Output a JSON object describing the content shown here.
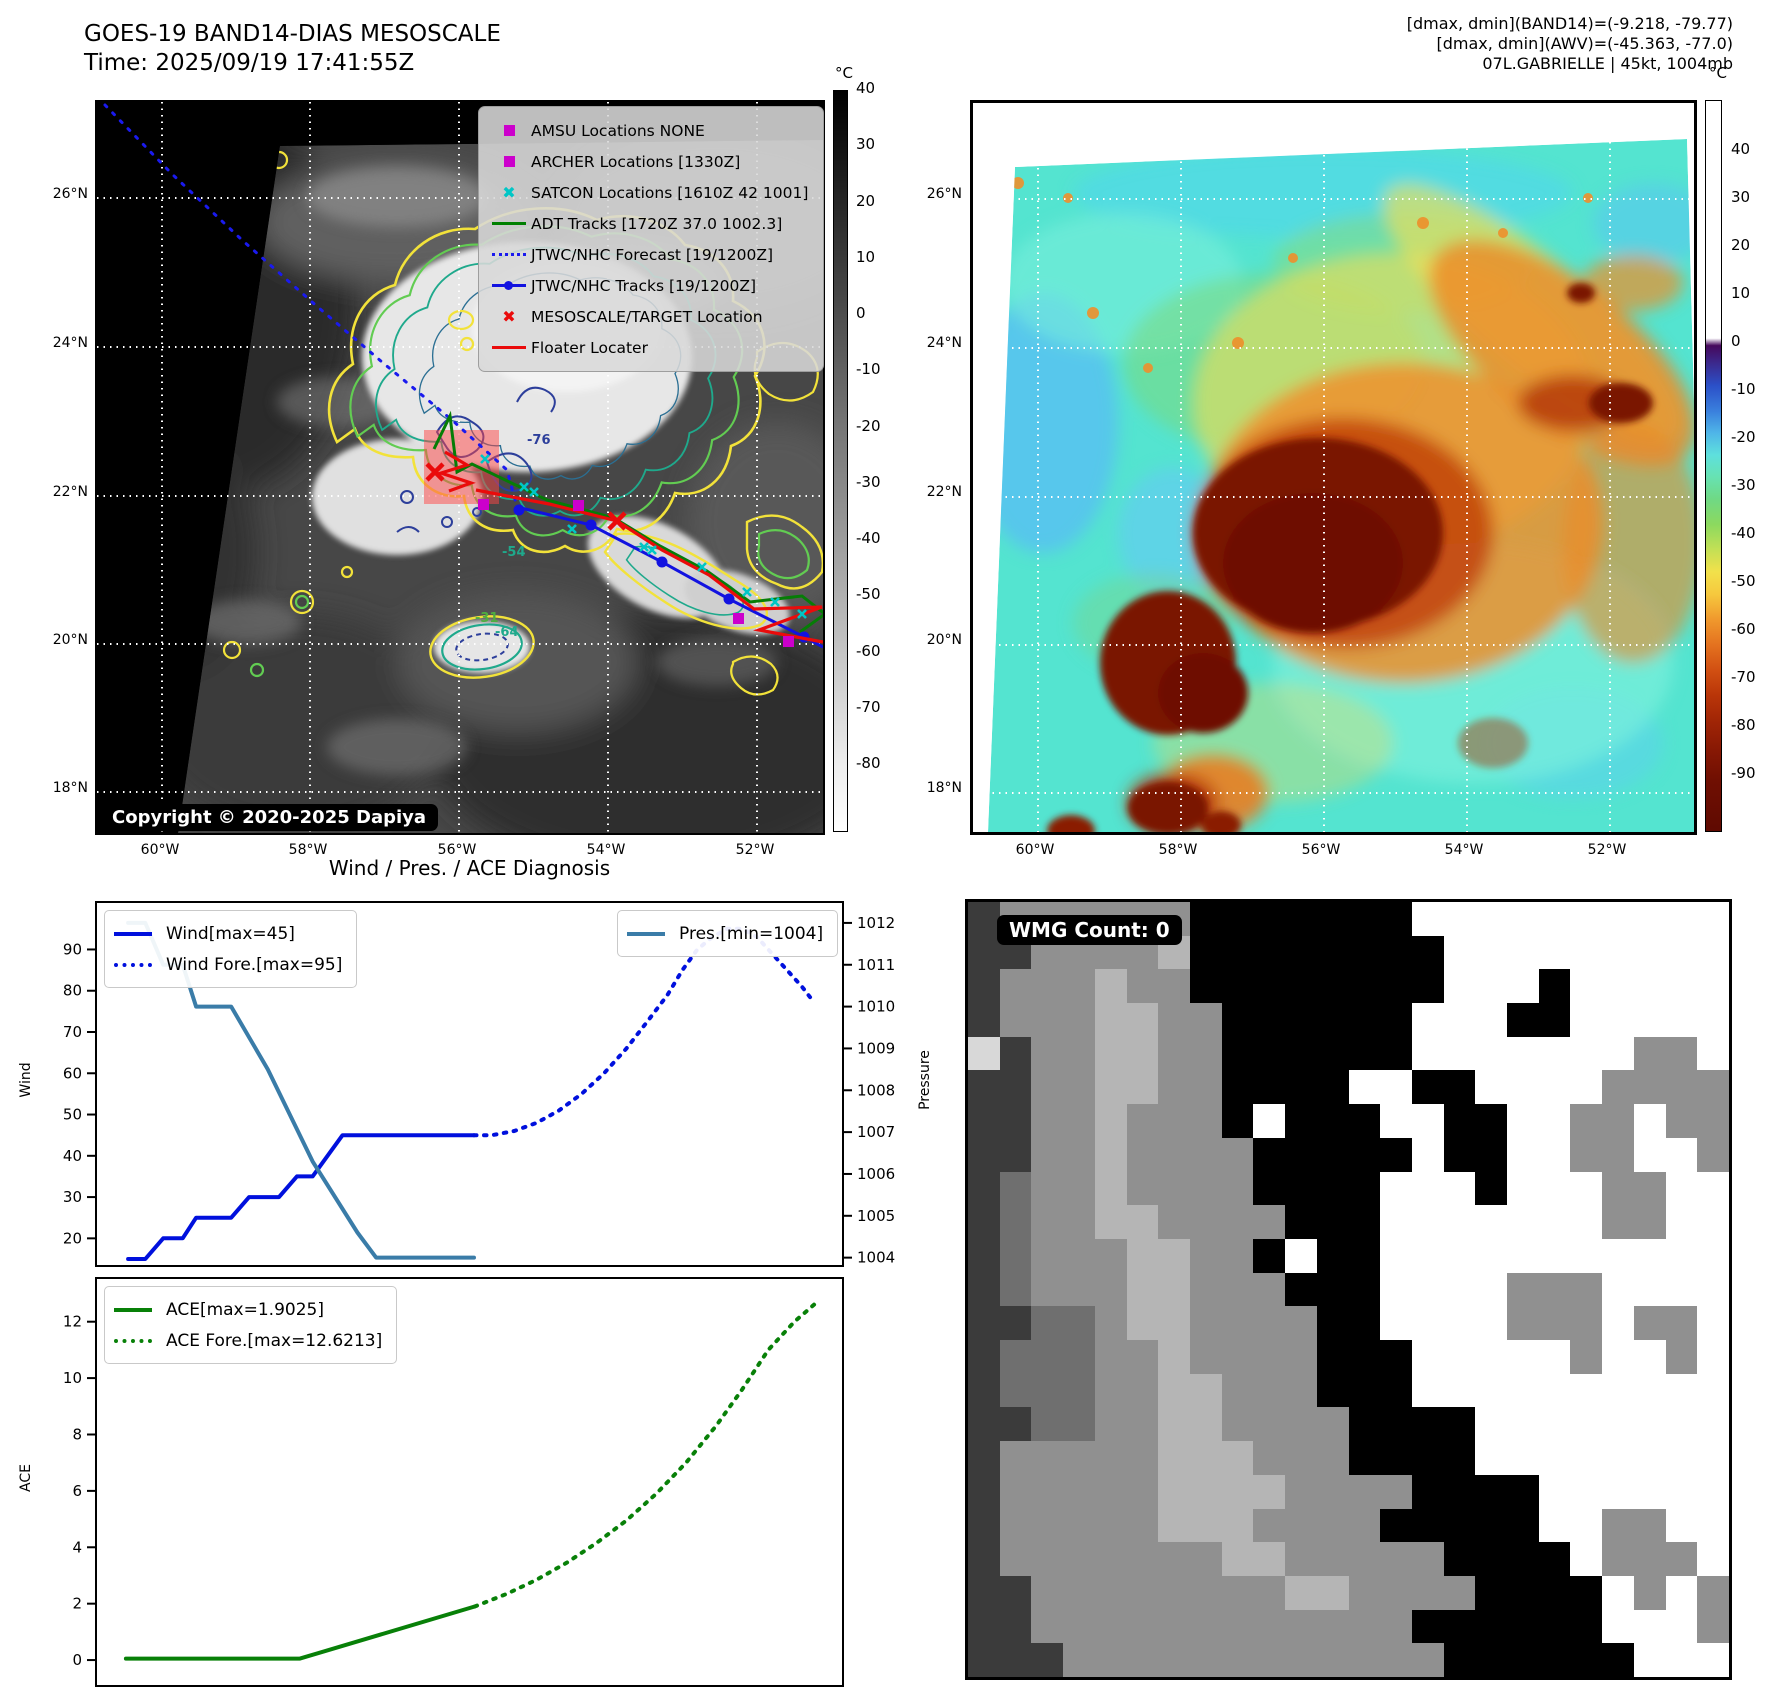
{
  "top_left": {
    "title_line1": "GOES-19 BAND14-DIAS MESOSCALE",
    "title_line2": "Time: 2025/09/19 17:41:55Z",
    "copyright": "Copyright © 2020-2025 Dapiya",
    "legend": [
      {
        "marker": "square-magenta",
        "label": "AMSU Locations NONE"
      },
      {
        "marker": "square-magenta",
        "label": "ARCHER Locations [1330Z]"
      },
      {
        "marker": "x-cyan",
        "label": "SATCON Locations [1610Z 42 1001]"
      },
      {
        "marker": "line-green",
        "label": "ADT Tracks [1720Z 37.0 1002.3]"
      },
      {
        "marker": "dotted-blue",
        "label": "JTWC/NHC Forecast [19/1200Z]"
      },
      {
        "marker": "track-blue",
        "label": "JTWC/NHC Tracks [19/1200Z]"
      },
      {
        "marker": "x-red",
        "label": "MESOSCALE/TARGET Location"
      },
      {
        "marker": "line-red",
        "label": "Floater Locater"
      }
    ],
    "lat_labels": [
      "26°N",
      "24°N",
      "22°N",
      "20°N",
      "18°N"
    ],
    "lon_labels": [
      "60°W",
      "58°W",
      "56°W",
      "54°W",
      "52°W"
    ],
    "colorbar": {
      "unit": "°C",
      "ticks": [
        40,
        30,
        20,
        10,
        0,
        -10,
        -20,
        -30,
        -40,
        -50,
        -60,
        -70,
        -80
      ]
    },
    "contour_labels": [
      {
        "text": "-76"
      },
      {
        "text": "-54"
      },
      {
        "text": "-31"
      },
      {
        "text": "-64"
      }
    ]
  },
  "top_right": {
    "header_line1": "[dmax, dmin](BAND14)=(-9.218, -79.77)",
    "header_line2": "[dmax, dmin](AWV)=(-45.363, -77.0)",
    "header_line3": "07L.GABRIELLE | 45kt, 1004mb",
    "lat_labels": [
      "26°N",
      "24°N",
      "22°N",
      "20°N",
      "18°N"
    ],
    "lon_labels": [
      "60°W",
      "58°W",
      "56°W",
      "54°W",
      "52°W"
    ],
    "colorbar": {
      "unit": "°C",
      "ticks": [
        40,
        30,
        20,
        10,
        0,
        -10,
        -20,
        -30,
        -40,
        -50,
        -60,
        -70,
        -80,
        -90
      ]
    }
  },
  "bottom_left": {
    "title": "Wind / Pres. / ACE Diagnosis",
    "wind_legend_1": "Wind[max=45]",
    "wind_legend_2": "Wind Fore.[max=95]",
    "pres_legend": "Pres.[min=1004]",
    "ace_legend_1": "ACE[max=1.9025]",
    "ace_legend_2": "ACE Fore.[max=12.6213]",
    "ylabel_wind": "Wind",
    "ylabel_pressure": "Pressure",
    "ylabel_ace": "ACE"
  },
  "bottom_right": {
    "wmg_label": "WMG Count: 0",
    "palette": {
      "b": "#000000",
      "w": "#ffffff",
      "d": "#3b3b3b",
      "m": "#6f6f6f",
      "g": "#909090",
      "l": "#b5b5b5",
      "e": "#d8d8d8"
    },
    "grid": [
      "dggggggbbbbbbbwwwwwwwwww",
      "ddgggglbbbbbbbbwwwwwwwww",
      "dggglggbbbbbbbbwwwbwwwww",
      "dgggllggbbbbbbwwwbbwwwww",
      "edggllggbbbbbbwwwwwwwggw",
      "ddggllggbbbbwwbbwwwwgggg",
      "ddgglgggbwbbbwwbbwwggwgg",
      "ddgglggggbbbbbwbbwwggwwg",
      "dmgglggggbbbbwwwbwwwggww",
      "dmggllggggbbbwwwwwwwggww",
      "dmgggllggbwbbwwwwwwwwwww",
      "dmgggllgggbbbwwwwgggwwww",
      "ddmmgllggggbbwwwwgggwggw",
      "dmmmgglggggbbbwwwwwgwwgw",
      "dmmmggllgggbbbwwwwwwwwww",
      "ddmmggllggggbbbbwwwwwwww",
      "dggggglllgggbbbbwwwwwwww",
      "dgggggllllggggbbbbwwwwww",
      "dggggglllggggbbbbbwwggww",
      "dgggggggllgggggbbbbwgggw",
      "ddggggggggllggggbbbbwgwg",
      "ddggggggggggggbbbbbbwwwg",
      "dddggggggggggggbbbbbbwww"
    ]
  },
  "chart_data": [
    {
      "type": "line",
      "title": "Wind / Pres. / ACE Diagnosis",
      "x_axis": {
        "range": [
          0,
          1
        ],
        "tick_labels_shown": false
      },
      "y_left": {
        "label": "Wind",
        "ticks": [
          20,
          30,
          40,
          50,
          60,
          70,
          80,
          90
        ],
        "min": 13.3,
        "max": 101.5
      },
      "y_right": {
        "label": "Pressure",
        "ticks": [
          1004,
          1005,
          1006,
          1007,
          1008,
          1009,
          1010,
          1011,
          1012
        ],
        "min": 1003.8,
        "max": 1012.5
      },
      "series": [
        {
          "name": "Wind[max=45]",
          "axis": "left",
          "style": "solid",
          "color": "#0010dd",
          "points": [
            [
              0.043,
              15
            ],
            [
              0.066,
              15
            ],
            [
              0.09,
              20
            ],
            [
              0.116,
              20
            ],
            [
              0.134,
              25
            ],
            [
              0.181,
              25
            ],
            [
              0.205,
              30
            ],
            [
              0.245,
              30
            ],
            [
              0.269,
              35
            ],
            [
              0.29,
              35
            ],
            [
              0.33,
              45
            ],
            [
              0.506,
              45
            ]
          ]
        },
        {
          "name": "Wind Fore.[max=95]",
          "axis": "left",
          "style": "dotted",
          "color": "#0010dd",
          "points": [
            [
              0.506,
              45
            ],
            [
              0.53,
              45
            ],
            [
              0.56,
              46
            ],
            [
              0.59,
              48
            ],
            [
              0.62,
              51
            ],
            [
              0.65,
              55
            ],
            [
              0.68,
              60
            ],
            [
              0.71,
              66
            ],
            [
              0.74,
              73
            ],
            [
              0.765,
              79
            ],
            [
              0.785,
              85
            ],
            [
              0.805,
              90
            ],
            [
              0.825,
              93
            ],
            [
              0.845,
              95
            ],
            [
              0.865,
              95
            ],
            [
              0.885,
              93
            ],
            [
              0.9,
              90
            ],
            [
              0.915,
              87
            ],
            [
              0.93,
              84
            ],
            [
              0.945,
              81
            ],
            [
              0.962,
              77
            ]
          ]
        },
        {
          "name": "Pres.[min=1004]",
          "axis": "right",
          "style": "solid",
          "color": "#3a7ca8",
          "points": [
            [
              0.043,
              1012
            ],
            [
              0.066,
              1012
            ],
            [
              0.09,
              1011
            ],
            [
              0.116,
              1011
            ],
            [
              0.134,
              1010
            ],
            [
              0.181,
              1010
            ],
            [
              0.23,
              1008.5
            ],
            [
              0.29,
              1006.3
            ],
            [
              0.35,
              1004.6
            ],
            [
              0.375,
              1004
            ],
            [
              0.506,
              1004
            ]
          ]
        }
      ]
    },
    {
      "type": "line",
      "y_left": {
        "label": "ACE",
        "ticks": [
          0,
          2,
          4,
          6,
          8,
          10,
          12
        ],
        "min": -0.92,
        "max": 13.55
      },
      "series": [
        {
          "name": "ACE[max=1.9025]",
          "axis": "left",
          "style": "solid",
          "color": "#088008",
          "points": [
            [
              0.04,
              0.05
            ],
            [
              0.273,
              0.05
            ],
            [
              0.507,
              1.9
            ]
          ]
        },
        {
          "name": "ACE Fore.[max=12.6213]",
          "axis": "left",
          "style": "dotted",
          "color": "#088008",
          "points": [
            [
              0.507,
              1.9
            ],
            [
              0.55,
              2.35
            ],
            [
              0.59,
              2.85
            ],
            [
              0.63,
              3.45
            ],
            [
              0.67,
              4.15
            ],
            [
              0.71,
              4.95
            ],
            [
              0.75,
              5.9
            ],
            [
              0.79,
              7.0
            ],
            [
              0.83,
              8.3
            ],
            [
              0.865,
              9.6
            ],
            [
              0.9,
              11.0
            ],
            [
              0.935,
              12.0
            ],
            [
              0.962,
              12.62
            ]
          ]
        }
      ]
    }
  ],
  "colors": {
    "wind_blue": "#0010dd",
    "pressure_steel": "#3a7ca8",
    "track_green": "#008000",
    "marker_magenta": "#cc00cc",
    "marker_cyan": "#00c6c6",
    "marker_red": "#ea0b0b"
  }
}
